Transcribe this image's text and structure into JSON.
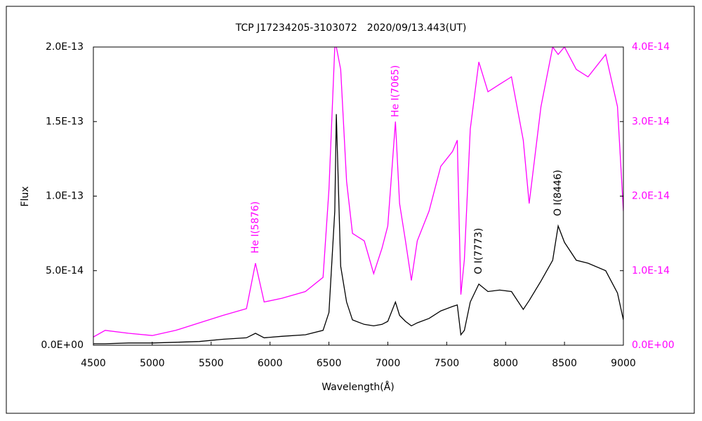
{
  "chart_data": {
    "type": "line",
    "title": "TCP J17234205-3103072　2020/09/13.443(UT)",
    "xlabel": "Wavelength(Å)",
    "ylabel": "Flux",
    "x": [
      4500,
      4600,
      4800,
      5000,
      5200,
      5400,
      5600,
      5800,
      5876,
      5950,
      6100,
      6300,
      6450,
      6500,
      6550,
      6563,
      6600,
      6650,
      6700,
      6800,
      6880,
      6950,
      7000,
      7065,
      7100,
      7150,
      7200,
      7250,
      7350,
      7450,
      7550,
      7590,
      7620,
      7650,
      7700,
      7773,
      7850,
      7950,
      8050,
      8150,
      8200,
      8300,
      8400,
      8446,
      8500,
      8600,
      8700,
      8850,
      8950,
      9000
    ],
    "series": [
      {
        "color": "#000000",
        "axis": "y",
        "values": [
          1e-15,
          1e-15,
          1.5e-15,
          1.5e-15,
          2e-15,
          2.5e-15,
          4e-15,
          5e-15,
          8e-15,
          5e-15,
          6e-15,
          7e-15,
          1e-14,
          2.2e-14,
          9e-14,
          1.55e-13,
          5.3e-14,
          2.9e-14,
          1.7e-14,
          1.4e-14,
          1.3e-14,
          1.4e-14,
          1.6e-14,
          2.9e-14,
          2e-14,
          1.6e-14,
          1.3e-14,
          1.5e-14,
          1.8e-14,
          2.3e-14,
          2.6e-14,
          2.7e-14,
          7e-15,
          1e-14,
          2.9e-14,
          4.1e-14,
          3.6e-14,
          3.7e-14,
          3.6e-14,
          2.4e-14,
          3e-14,
          4.3e-14,
          5.7e-14,
          8e-14,
          6.9e-14,
          5.7e-14,
          5.5e-14,
          5e-14,
          3.5e-14,
          1.7e-14
        ]
      },
      {
        "color": "#ff00ff",
        "axis": "y2",
        "values": [
          1.1e-15,
          2e-15,
          1.6e-15,
          1.3e-15,
          2e-15,
          3e-15,
          4e-15,
          4.9e-15,
          1.1e-14,
          5.8e-15,
          6.3e-15,
          7.2e-15,
          9.1e-15,
          2.09e-14,
          4e-14,
          4e-14,
          3.7e-14,
          2.2e-14,
          1.5e-14,
          1.4e-14,
          9.6e-15,
          1.3e-14,
          1.6e-14,
          3e-14,
          1.9e-14,
          1.4e-14,
          8.7e-15,
          1.4e-14,
          1.8e-14,
          2.4e-14,
          2.6e-14,
          2.75e-14,
          6.8e-15,
          1.15e-14,
          2.9e-14,
          3.8e-14,
          3.4e-14,
          3.5e-14,
          3.6e-14,
          2.75e-14,
          1.9e-14,
          3.2e-14,
          4e-14,
          3.9e-14,
          4e-14,
          3.7e-14,
          3.6e-14,
          3.9e-14,
          3.2e-14,
          1.8e-14
        ]
      }
    ],
    "xlim": [
      4500,
      9000
    ],
    "xticks": [
      4500,
      5000,
      5500,
      6000,
      6500,
      7000,
      7500,
      8000,
      8500,
      9000
    ],
    "ylim": [
      0,
      2e-13
    ],
    "yticks": [
      {
        "value": 0,
        "label": "0.0E+00"
      },
      {
        "value": 5e-14,
        "label": "5.0E-14"
      },
      {
        "value": 1e-13,
        "label": "1.0E-13"
      },
      {
        "value": 1.5e-13,
        "label": "1.5E-13"
      },
      {
        "value": 2e-13,
        "label": "2.0E-13"
      }
    ],
    "y2lim": [
      0,
      4e-14
    ],
    "y2ticks": [
      {
        "value": 0,
        "label": "0.0E+00"
      },
      {
        "value": 1e-14,
        "label": "1.0E-14"
      },
      {
        "value": 2e-14,
        "label": "2.0E-14"
      },
      {
        "value": 3e-14,
        "label": "3.0E-14"
      },
      {
        "value": 4e-14,
        "label": "4.0E-14"
      }
    ],
    "y2color": "#ff00ff",
    "annotations": [
      {
        "text": "He I(5876)",
        "x": 5876,
        "series": 1,
        "color": "#ff00ff"
      },
      {
        "text": "He I(7065)",
        "x": 7065,
        "series": 1,
        "color": "#ff00ff"
      },
      {
        "text": "O I(7773)",
        "x": 7773,
        "series": 0,
        "color": "#000000"
      },
      {
        "text": "O I(8446)",
        "x": 8446,
        "series": 0,
        "color": "#000000"
      }
    ]
  }
}
